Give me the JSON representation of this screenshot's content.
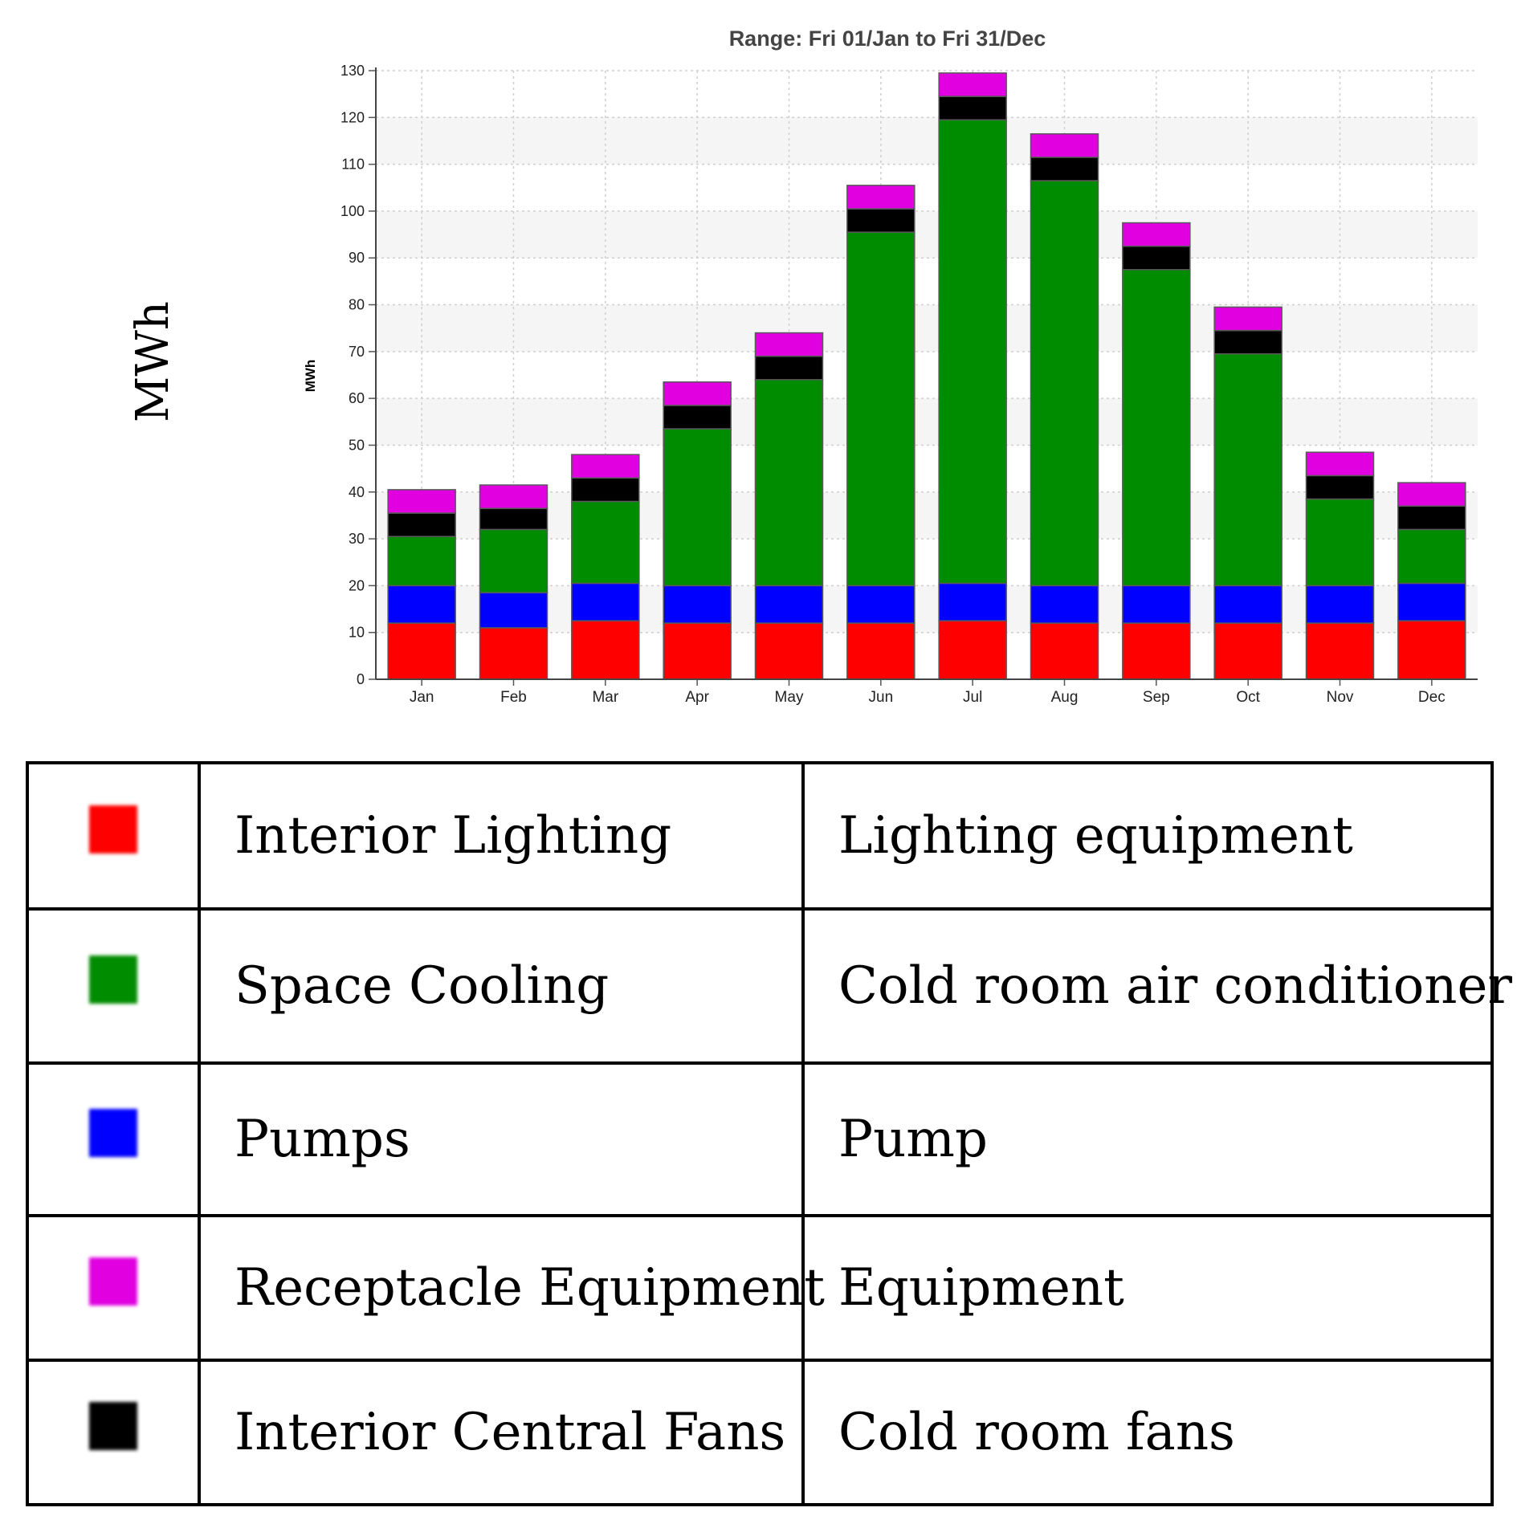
{
  "outer_ylabel": "MWh",
  "chart_data": {
    "type": "bar",
    "stacked": true,
    "title": "Range: Fri 01/Jan to Fri 31/Dec",
    "xlabel": "",
    "ylabel": "MWh",
    "ylim": [
      0,
      130
    ],
    "yticks": [
      0,
      10,
      20,
      30,
      40,
      50,
      60,
      70,
      80,
      90,
      100,
      110,
      120,
      130
    ],
    "grid": true,
    "categories": [
      "Jan",
      "Feb",
      "Mar",
      "Apr",
      "May",
      "Jun",
      "Jul",
      "Aug",
      "Sep",
      "Oct",
      "Nov",
      "Dec"
    ],
    "series": [
      {
        "name": "Interior Lighting",
        "color": "#ff0000",
        "values": [
          12,
          11,
          12.5,
          12,
          12,
          12,
          12.5,
          12,
          12,
          12,
          12,
          12.5
        ]
      },
      {
        "name": "Pumps",
        "color": "#0000ff",
        "values": [
          8,
          7.5,
          8,
          8,
          8,
          8,
          8,
          8,
          8,
          8,
          8,
          8
        ]
      },
      {
        "name": "Space Cooling",
        "color": "#008c00",
        "values": [
          10.5,
          13.5,
          17.5,
          33.5,
          44,
          75.5,
          99,
          86.5,
          67.5,
          49.5,
          18.5,
          11.5
        ]
      },
      {
        "name": "Interior Central Fans",
        "color": "#000000",
        "values": [
          5,
          4.5,
          5,
          5,
          5,
          5,
          5,
          5,
          5,
          5,
          5,
          5
        ]
      },
      {
        "name": "Receptacle Equipment",
        "color": "#e000e0",
        "values": [
          5,
          5,
          5,
          5,
          5,
          5,
          5,
          5,
          5,
          5,
          5,
          5
        ]
      }
    ]
  },
  "legend_table": {
    "rows": [
      {
        "color": "#ff0000",
        "category": "Interior Lighting",
        "description": "Lighting equipment"
      },
      {
        "color": "#008c00",
        "category": "Space Cooling",
        "description": "Cold room air conditioner"
      },
      {
        "color": "#0000ff",
        "category": "Pumps",
        "description": "Pump"
      },
      {
        "color": "#e000e0",
        "category": "Receptacle Equipment",
        "description": "Equipment"
      },
      {
        "color": "#000000",
        "category": "Interior Central Fans",
        "description": "Cold room fans"
      }
    ]
  }
}
